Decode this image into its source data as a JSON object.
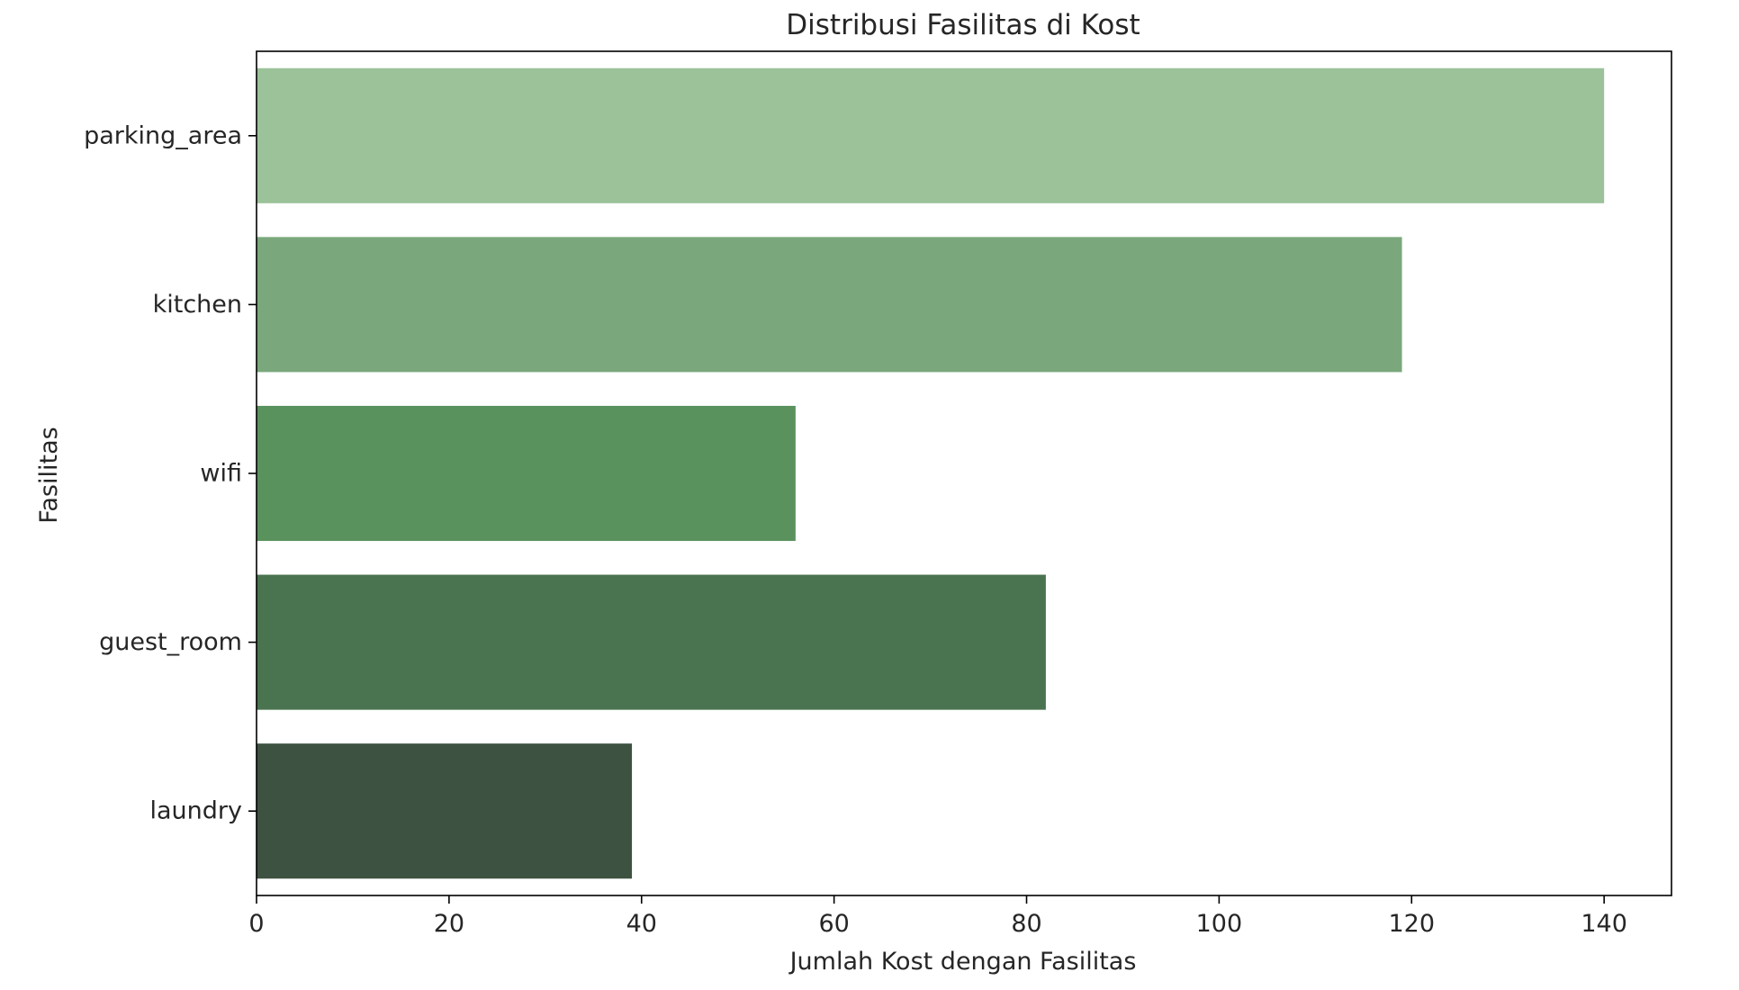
{
  "chart_data": {
    "type": "bar",
    "orientation": "horizontal",
    "title": "Distribusi Fasilitas di Kost",
    "xlabel": "Jumlah Kost dengan Fasilitas",
    "ylabel": "Fasilitas",
    "categories": [
      "parking_area",
      "kitchen",
      "wifi",
      "guest_room",
      "laundry"
    ],
    "values": [
      140,
      119,
      56,
      82,
      39
    ],
    "colors": [
      "#9cc29a",
      "#7aa87c",
      "#5a925e",
      "#4a7450",
      "#3e5242"
    ],
    "xlim": [
      0,
      147
    ],
    "xticks": [
      0,
      20,
      40,
      60,
      80,
      100,
      120,
      140
    ],
    "grid": false,
    "legend": "none"
  }
}
